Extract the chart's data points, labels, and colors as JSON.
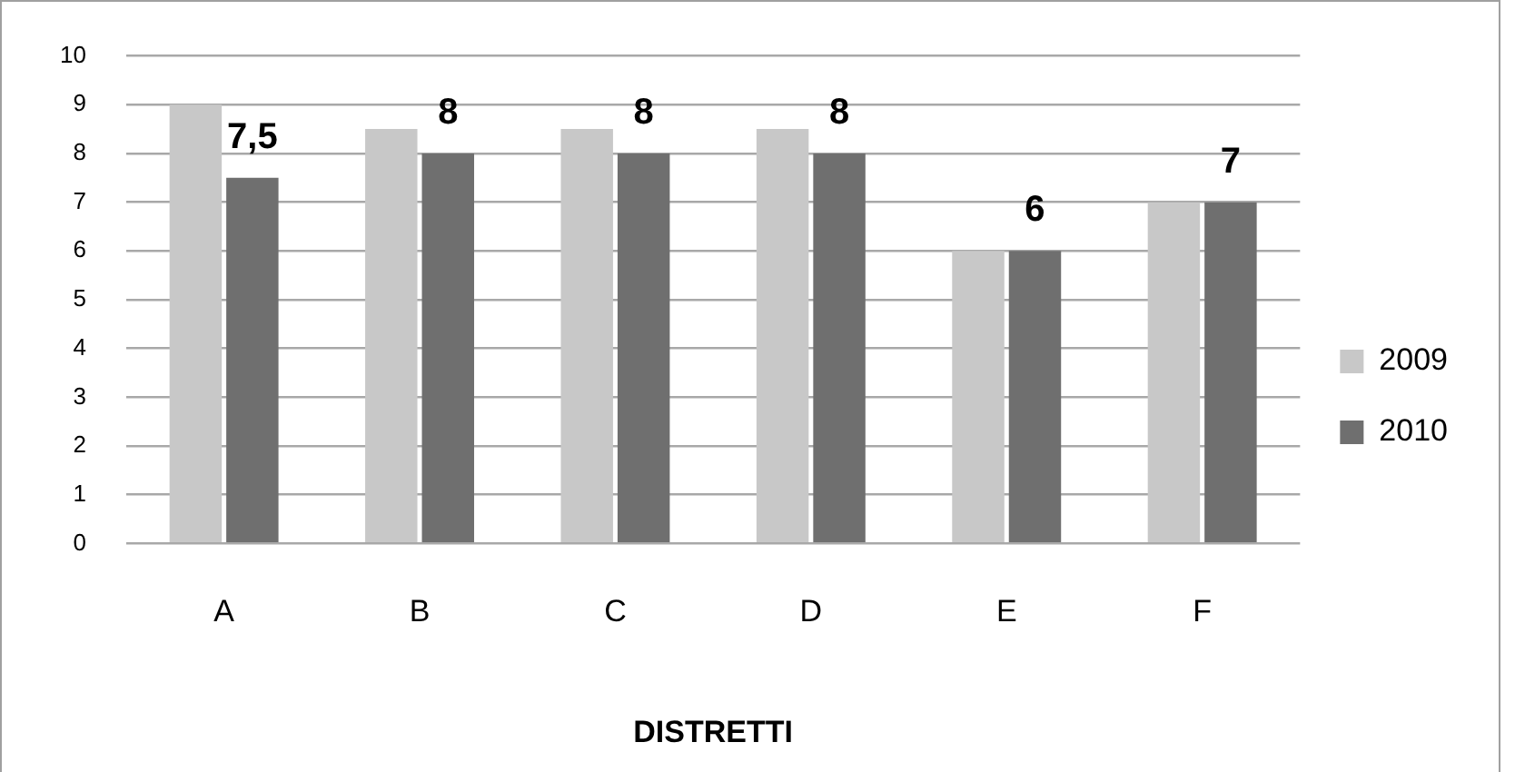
{
  "chart_data": {
    "type": "bar",
    "xlabel": "DISTRETTI",
    "categories": [
      "A",
      "B",
      "C",
      "D",
      "E",
      "F"
    ],
    "series": [
      {
        "name": "2009",
        "color": "#c8c8c8",
        "values": [
          9,
          8.5,
          8.5,
          8.5,
          6,
          7
        ]
      },
      {
        "name": "2010",
        "color": "#6f6f6f",
        "values": [
          7.5,
          8,
          8,
          8,
          6,
          7
        ],
        "value_labels": [
          "7,5",
          "8",
          "8",
          "8",
          "6",
          "7"
        ]
      }
    ],
    "ylim": [
      0,
      10
    ],
    "yticks": [
      0,
      1,
      2,
      3,
      4,
      5,
      6,
      7,
      8,
      9,
      10
    ],
    "grid": "y",
    "legend": "right"
  }
}
